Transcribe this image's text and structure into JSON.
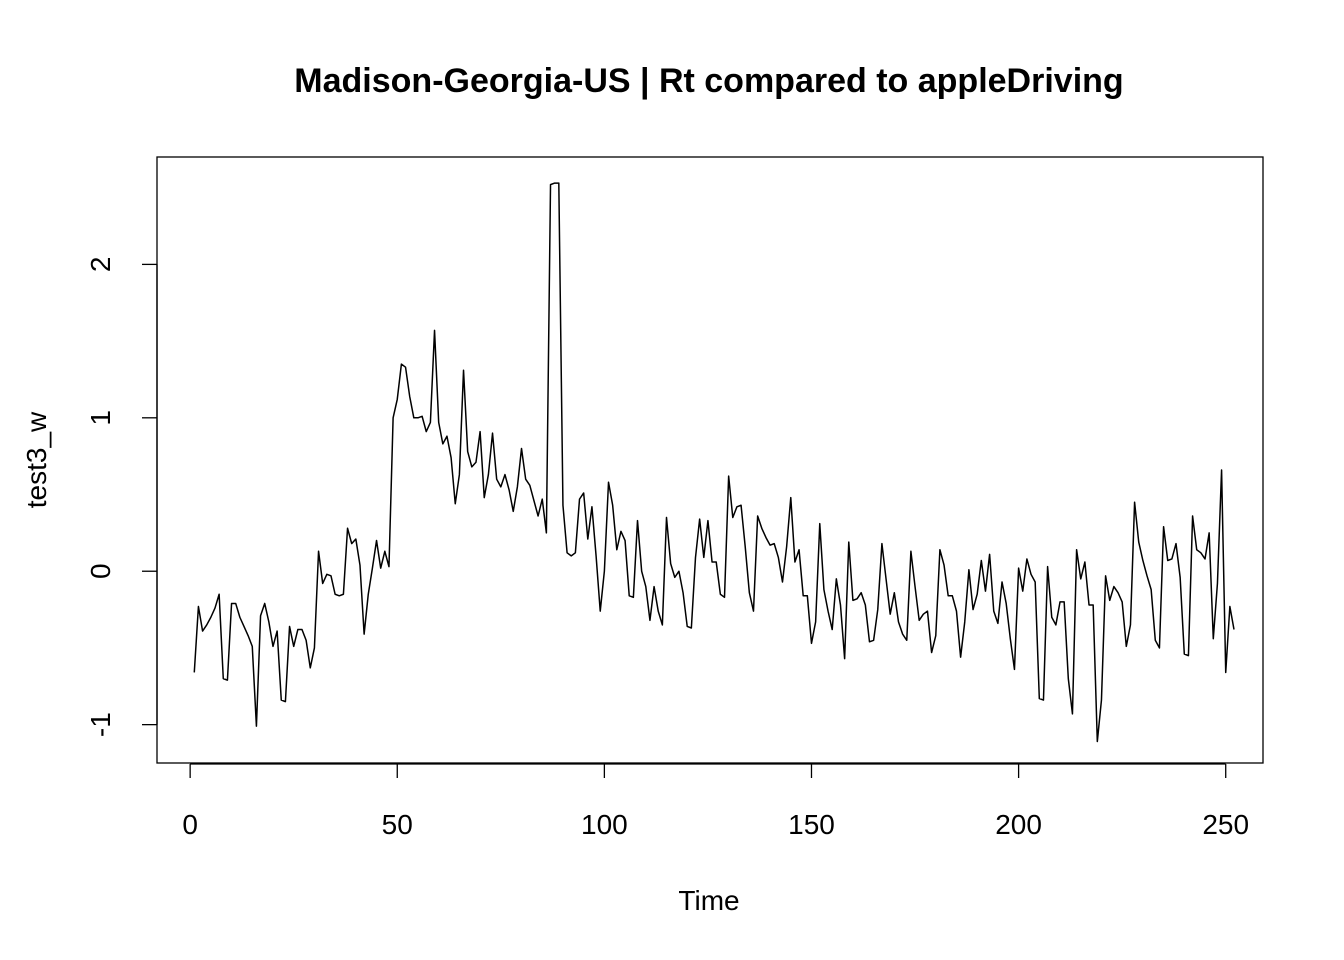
{
  "chart_data": {
    "type": "line",
    "title": "Madison-Georgia-US | Rt compared to appleDriving",
    "xlabel": "Time",
    "ylabel": "test3_w",
    "xlim": [
      -8,
      259
    ],
    "ylim": [
      -1.25,
      2.7
    ],
    "xticks": [
      0,
      50,
      100,
      150,
      200,
      250
    ],
    "yticks": [
      -1,
      0,
      1,
      2
    ],
    "xtick_labels": [
      "0",
      "50",
      "100",
      "150",
      "200",
      "250"
    ],
    "ytick_labels": [
      "-1",
      "0",
      "1",
      "2"
    ],
    "grid": false,
    "series": [
      {
        "color": "#000000",
        "x_start": 1,
        "values": [
          -0.66,
          -0.23,
          -0.39,
          -0.35,
          -0.3,
          -0.24,
          -0.15,
          -0.7,
          -0.71,
          -0.21,
          -0.21,
          -0.3,
          -0.36,
          -0.42,
          -0.49,
          -1.01,
          -0.29,
          -0.21,
          -0.33,
          -0.49,
          -0.39,
          -0.84,
          -0.85,
          -0.36,
          -0.49,
          -0.38,
          -0.38,
          -0.45,
          -0.63,
          -0.5,
          0.13,
          -0.08,
          -0.02,
          -0.03,
          -0.15,
          -0.16,
          -0.15,
          0.28,
          0.18,
          0.21,
          0.04,
          -0.41,
          -0.15,
          0.02,
          0.2,
          0.02,
          0.13,
          0.03,
          1.0,
          1.12,
          1.35,
          1.33,
          1.14,
          1.0,
          1.0,
          1.01,
          0.91,
          0.97,
          1.57,
          0.97,
          0.83,
          0.88,
          0.74,
          0.44,
          0.63,
          1.31,
          0.78,
          0.68,
          0.71,
          0.91,
          0.48,
          0.63,
          0.9,
          0.6,
          0.55,
          0.63,
          0.53,
          0.39,
          0.55,
          0.8,
          0.6,
          0.56,
          0.46,
          0.36,
          0.47,
          0.25,
          2.52,
          2.53,
          2.53,
          0.43,
          0.12,
          0.1,
          0.12,
          0.47,
          0.51,
          0.21,
          0.42,
          0.1,
          -0.26,
          0.0,
          0.58,
          0.43,
          0.14,
          0.26,
          0.2,
          -0.16,
          -0.17,
          0.33,
          0.0,
          -0.1,
          -0.32,
          -0.1,
          -0.26,
          -0.35,
          0.35,
          0.05,
          -0.04,
          0.0,
          -0.14,
          -0.36,
          -0.37,
          0.09,
          0.34,
          0.09,
          0.33,
          0.06,
          0.06,
          -0.15,
          -0.17,
          0.62,
          0.35,
          0.42,
          0.43,
          0.16,
          -0.14,
          -0.26,
          0.36,
          0.28,
          0.22,
          0.17,
          0.18,
          0.09,
          -0.07,
          0.16,
          0.48,
          0.06,
          0.14,
          -0.16,
          -0.16,
          -0.47,
          -0.33,
          0.31,
          -0.12,
          -0.26,
          -0.38,
          -0.05,
          -0.22,
          -0.57,
          0.19,
          -0.19,
          -0.18,
          -0.14,
          -0.22,
          -0.46,
          -0.45,
          -0.25,
          0.18,
          -0.05,
          -0.28,
          -0.14,
          -0.33,
          -0.41,
          -0.45,
          0.13,
          -0.1,
          -0.32,
          -0.28,
          -0.26,
          -0.53,
          -0.42,
          0.14,
          0.04,
          -0.16,
          -0.16,
          -0.26,
          -0.56,
          -0.33,
          0.01,
          -0.25,
          -0.15,
          0.07,
          -0.13,
          0.11,
          -0.26,
          -0.34,
          -0.07,
          -0.21,
          -0.44,
          -0.64,
          0.02,
          -0.13,
          0.08,
          -0.02,
          -0.07,
          -0.83,
          -0.84,
          0.03,
          -0.3,
          -0.35,
          -0.2,
          -0.2,
          -0.7,
          -0.93,
          0.14,
          -0.05,
          0.06,
          -0.22,
          -0.22,
          -1.11,
          -0.84,
          -0.03,
          -0.19,
          -0.1,
          -0.14,
          -0.2,
          -0.49,
          -0.35,
          0.45,
          0.19,
          0.07,
          -0.03,
          -0.12,
          -0.45,
          -0.5,
          0.29,
          0.07,
          0.08,
          0.18,
          -0.04,
          -0.54,
          -0.55,
          0.36,
          0.14,
          0.12,
          0.08,
          0.25,
          -0.44,
          -0.08,
          0.66,
          -0.66,
          -0.23,
          -0.38
        ]
      }
    ]
  }
}
